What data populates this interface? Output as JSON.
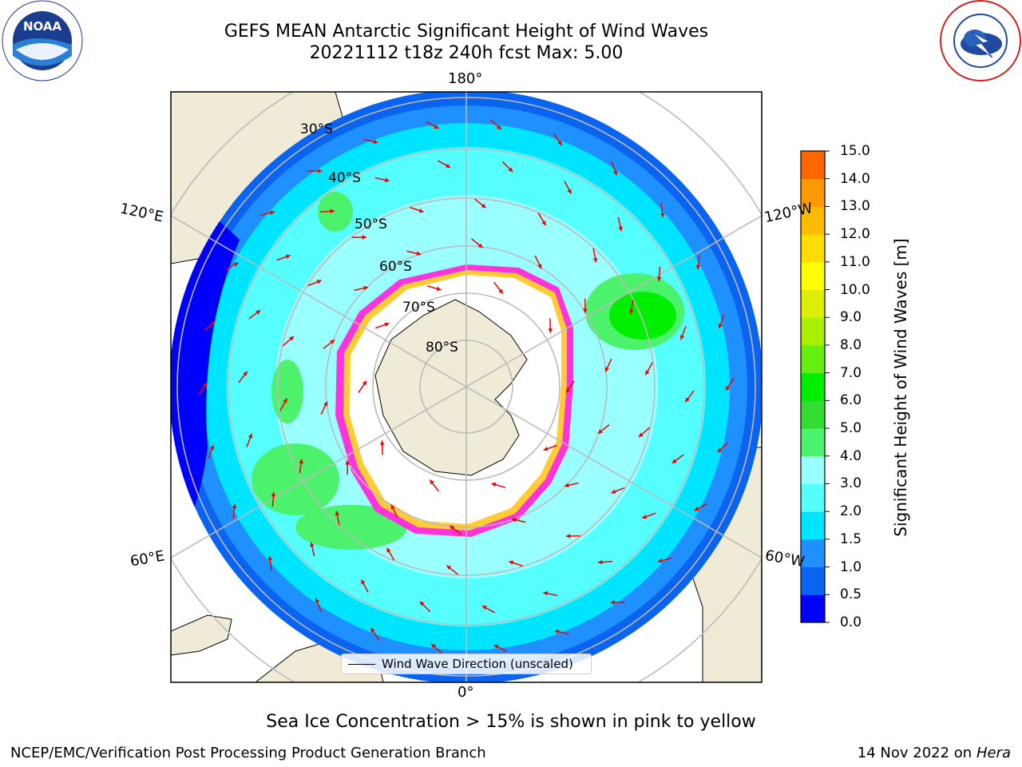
{
  "header": {
    "title": "GEFS MEAN Antarctic Significant Height of Wind Waves",
    "subtitle": "20221112 t18z 240h fcst   Max: 5.00"
  },
  "logos": {
    "left": "NOAA",
    "left_ring_text": "NATIONAL OCEANIC AND ATMOSPHERIC ADMINISTRATION · U.S. DEPARTMENT OF COMMERCE",
    "right_ring_text": "NATIONAL WEATHER SERVICE"
  },
  "map": {
    "longitude_labels": {
      "top": "180°",
      "bottom": "0°",
      "upper_left": "120°E",
      "lower_left": "60°E",
      "upper_right": "120°W",
      "lower_right": "60°W"
    },
    "latitude_labels": [
      "30°S",
      "40°S",
      "50°S",
      "60°S",
      "70°S",
      "80°S"
    ],
    "legend": "Wind Wave Direction (unscaled)",
    "colors": {
      "land": "#efebd7",
      "ocean_bg": "#ffffff",
      "ice_edge_pink": "#ff33dd",
      "ice_edge_yellow": "#ffcc33",
      "arrow": "#ee0000",
      "gridline": "#bbbbbb"
    }
  },
  "colorbar": {
    "label": "Significant Height of Wind Waves [m]",
    "ticks": [
      "0.0",
      "0.5",
      "1.0",
      "1.5",
      "2.0",
      "3.0",
      "4.0",
      "5.0",
      "6.0",
      "7.0",
      "8.0",
      "9.0",
      "10.0",
      "11.0",
      "12.0",
      "13.0",
      "14.0",
      "15.0"
    ],
    "colors": [
      "#0000ff",
      "#0a64f0",
      "#1e90ff",
      "#00e5ff",
      "#55ffff",
      "#99ffff",
      "#4cf26b",
      "#33dd33",
      "#00ee00",
      "#66ee11",
      "#aaee00",
      "#ddee00",
      "#ffff00",
      "#ffdd00",
      "#ffbb00",
      "#ff9900",
      "#ff6600",
      "#ff3300",
      "#ff0000"
    ]
  },
  "footer": {
    "note": "Sea Ice Concentration > 15% is shown in pink to yellow",
    "credit": "NCEP/EMC/Verification Post Processing Product Generation Branch",
    "date": "14 Nov 2022 on",
    "host": "Hera"
  }
}
